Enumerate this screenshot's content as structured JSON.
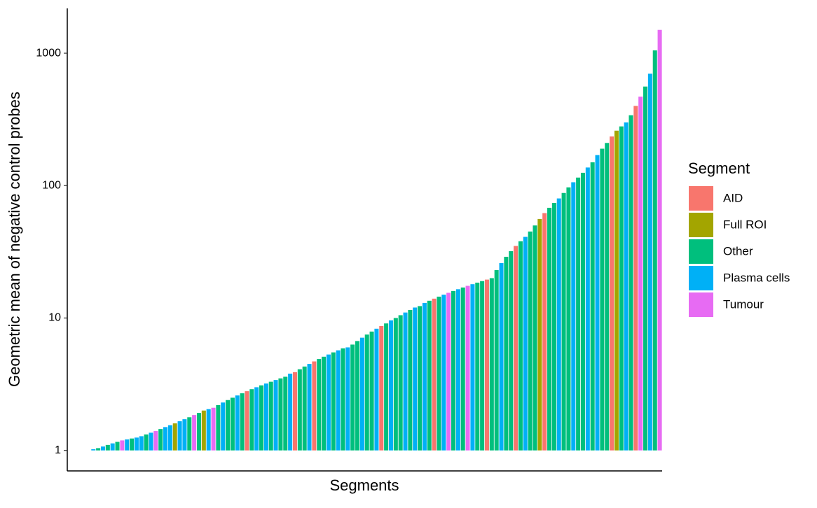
{
  "chart_data": {
    "type": "bar",
    "xlabel": "Segments",
    "ylabel": "Geometric mean of negative control probes",
    "log_y": true,
    "ylim": [
      0.7,
      2180
    ],
    "yticks": [
      1,
      10,
      100,
      1000
    ],
    "legend_title": "Segment",
    "legend_position": "right",
    "series": [
      {
        "name": "AID",
        "color": "#F8766D"
      },
      {
        "name": "Full ROI",
        "color": "#A3A500"
      },
      {
        "name": "Other",
        "color": "#00BF7D"
      },
      {
        "name": "Plasma cells",
        "color": "#00B0F6"
      },
      {
        "name": "Tumour",
        "color": "#E76BF3"
      }
    ],
    "values": [
      1.0,
      1.02,
      1.04,
      1.07,
      1.1,
      1.13,
      1.16,
      1.19,
      1.21,
      1.23,
      1.25,
      1.28,
      1.32,
      1.36,
      1.4,
      1.45,
      1.5,
      1.55,
      1.6,
      1.66,
      1.72,
      1.78,
      1.85,
      1.92,
      2.0,
      2.05,
      2.1,
      2.2,
      2.3,
      2.4,
      2.5,
      2.6,
      2.7,
      2.8,
      2.9,
      3.0,
      3.1,
      3.2,
      3.3,
      3.4,
      3.5,
      3.6,
      3.8,
      3.9,
      4.1,
      4.3,
      4.5,
      4.7,
      4.9,
      5.1,
      5.3,
      5.5,
      5.7,
      5.9,
      6.0,
      6.3,
      6.7,
      7.1,
      7.5,
      7.9,
      8.3,
      8.7,
      9.1,
      9.6,
      10,
      10.5,
      11,
      11.5,
      12,
      12.3,
      13,
      13.5,
      14,
      14.5,
      15,
      15.5,
      16,
      16.5,
      17,
      17.5,
      18,
      18.5,
      19,
      19.5,
      20,
      23,
      26,
      29,
      32,
      35,
      38,
      41,
      45,
      50,
      56,
      62,
      68,
      74,
      80,
      88,
      97,
      106,
      115,
      125,
      137,
      150,
      170,
      190,
      210,
      235,
      260,
      280,
      300,
      340,
      400,
      470,
      560,
      700,
      1050,
      1500
    ],
    "bar_series": [
      3,
      3,
      2,
      3,
      2,
      3,
      2,
      4,
      3,
      2,
      3,
      3,
      2,
      3,
      4,
      2,
      3,
      3,
      1,
      3,
      3,
      2,
      4,
      2,
      1,
      3,
      4,
      2,
      3,
      2,
      2,
      3,
      2,
      0,
      2,
      3,
      2,
      3,
      2,
      3,
      2,
      2,
      3,
      0,
      2,
      2,
      3,
      0,
      2,
      2,
      3,
      2,
      3,
      2,
      3,
      2,
      2,
      3,
      2,
      2,
      3,
      0,
      2,
      3,
      2,
      2,
      3,
      2,
      3,
      2,
      3,
      2,
      0,
      2,
      3,
      4,
      2,
      3,
      2,
      4,
      3,
      2,
      2,
      0,
      2,
      2,
      3,
      2,
      2,
      0,
      2,
      3,
      2,
      2,
      1,
      0,
      2,
      2,
      3,
      2,
      2,
      3,
      2,
      2,
      3,
      2,
      3,
      2,
      2,
      0,
      1,
      2,
      3,
      2,
      0,
      4,
      2,
      3,
      2,
      4
    ]
  }
}
